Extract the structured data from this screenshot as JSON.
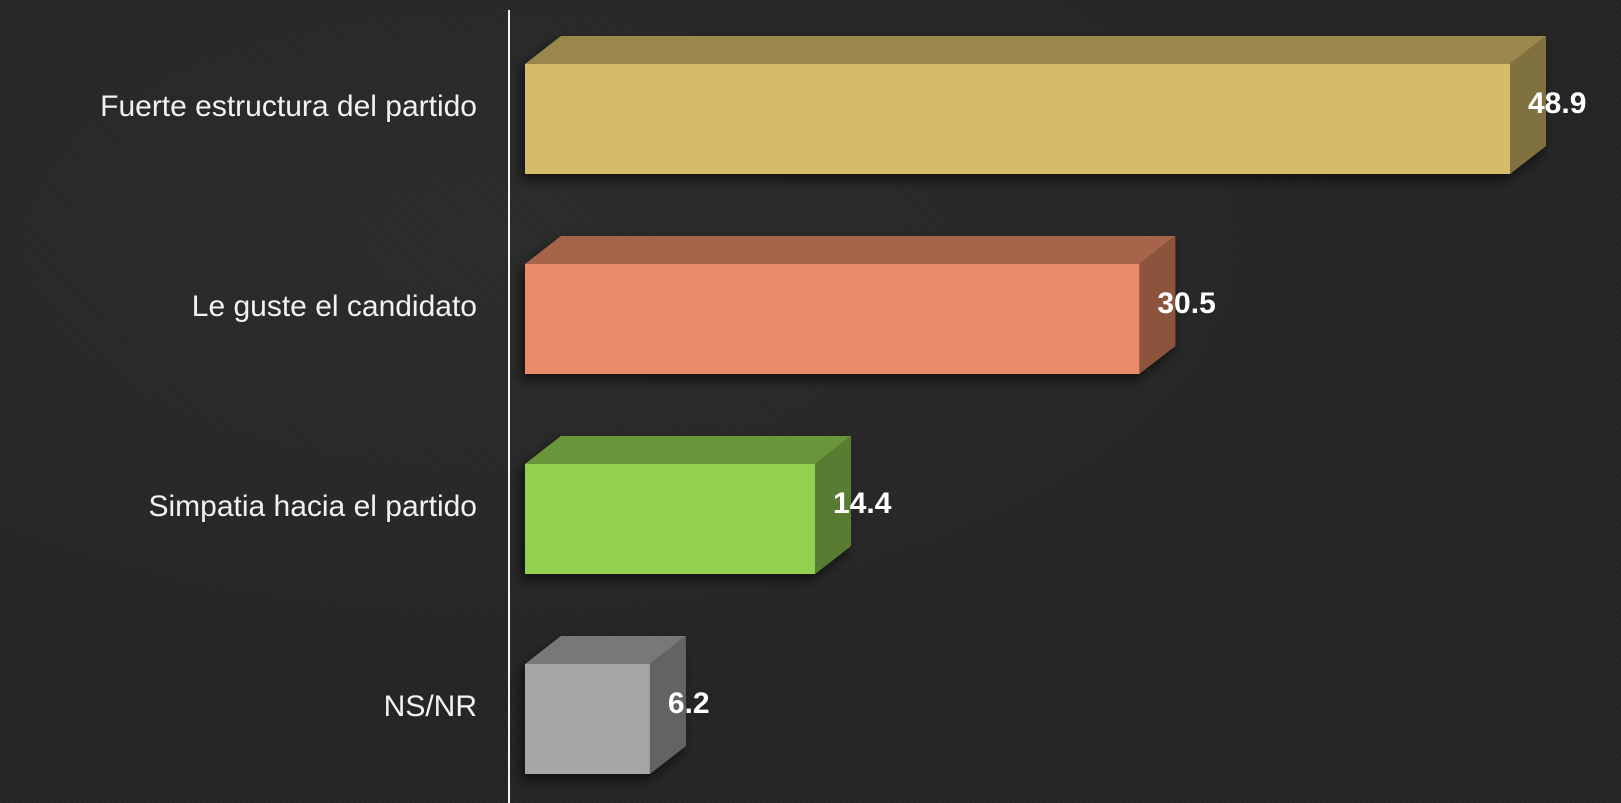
{
  "chart_data": {
    "type": "bar",
    "orientation": "horizontal",
    "style": "3d",
    "categories": [
      "Fuerte estructura del partido",
      "Le guste el candidato",
      "Simpatia hacia el partido",
      "NS/NR"
    ],
    "values": [
      48.9,
      30.5,
      14.4,
      6.2
    ],
    "value_labels": [
      "48.9",
      "30.5",
      "14.4",
      "6.2"
    ],
    "colors": [
      "#d4bc6a",
      "#ea8a68",
      "#92d050",
      "#a6a6a6"
    ],
    "title": "",
    "xlabel": "",
    "ylabel": "",
    "xlim": [
      0,
      48.9
    ],
    "grid": false,
    "legend": "none"
  }
}
